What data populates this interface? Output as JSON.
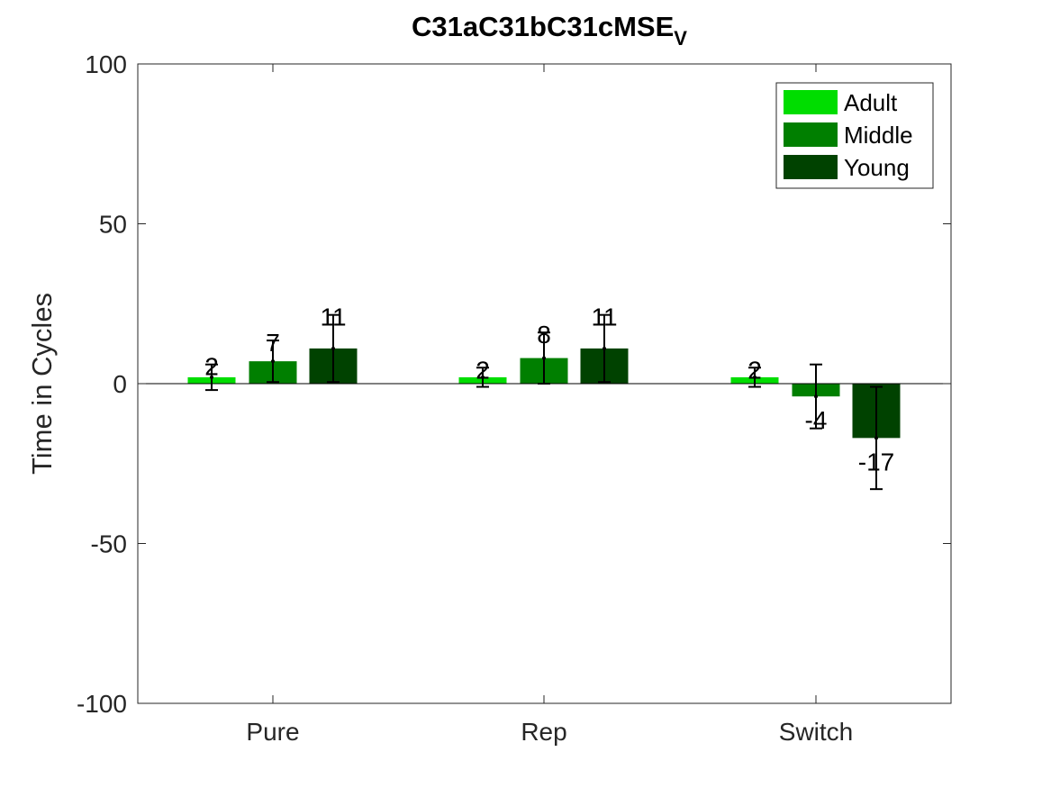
{
  "chart_data": {
    "type": "bar",
    "title": "C31aC31bC31cMSE",
    "title_subscript": "V",
    "xlabel": "",
    "ylabel": "Time in Cycles",
    "ylim": [
      -100,
      100
    ],
    "yticks": [
      -100,
      -50,
      0,
      50,
      100
    ],
    "grid": false,
    "legend_position": "top-right",
    "categories": [
      "Pure",
      "Rep",
      "Switch"
    ],
    "series": [
      {
        "name": "Adult",
        "color": "#00dd00",
        "values": [
          2,
          2,
          2
        ],
        "errors": [
          4,
          3,
          3
        ],
        "labels": [
          "2",
          "2",
          "2"
        ]
      },
      {
        "name": "Middle",
        "color": "#007f00",
        "values": [
          7,
          8,
          -4
        ],
        "errors": [
          6.5,
          8,
          10
        ],
        "labels": [
          "7",
          "8",
          "-4"
        ]
      },
      {
        "name": "Young",
        "color": "#004200",
        "values": [
          11,
          11,
          -17
        ],
        "errors": [
          10.5,
          10.5,
          16
        ],
        "labels": [
          "11",
          "11",
          "-17"
        ]
      }
    ]
  }
}
